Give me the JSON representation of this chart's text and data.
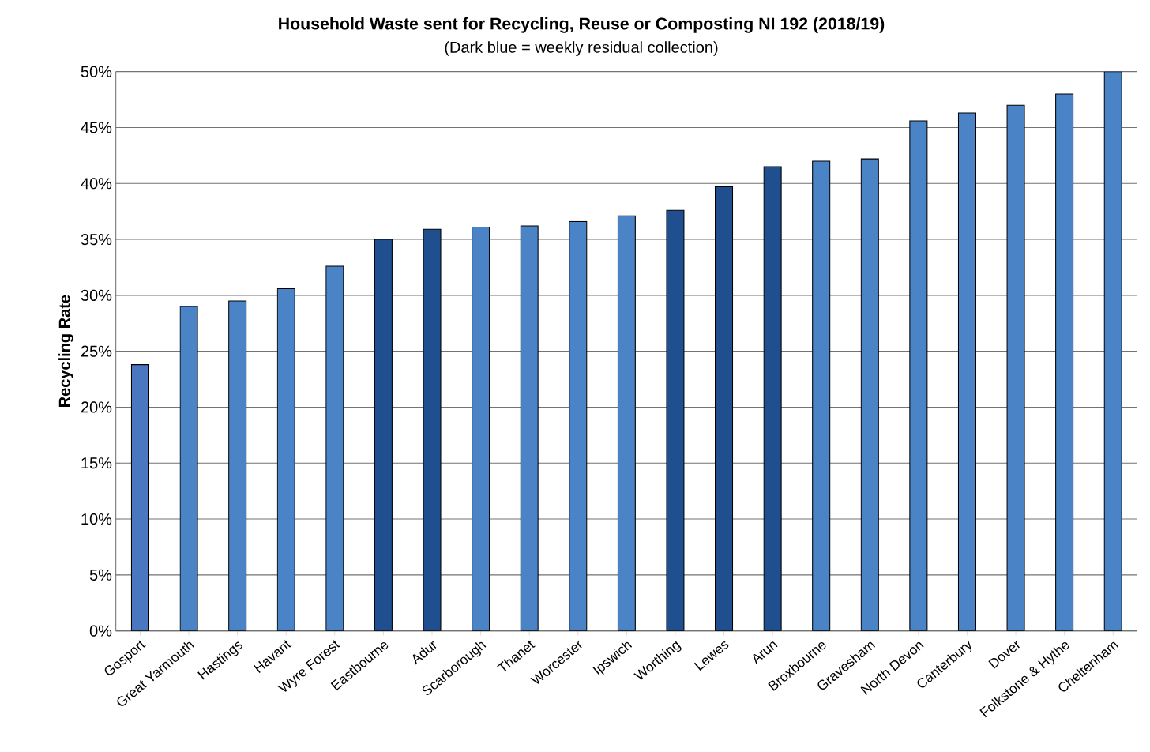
{
  "chart_data": {
    "type": "bar",
    "title": "Household Waste sent for Recycling, Reuse or Composting  NI 192 (2018/19)",
    "subtitle": "(Dark blue = weekly residual collection)",
    "ylabel": "Recycling Rate",
    "categories": [
      "Gosport",
      "Great Yarmouth",
      "Hastings",
      "Havant",
      "Wyre Forest",
      "Eastbourne",
      "Adur",
      "Scarborough",
      "Thanet",
      "Worcester",
      "Ipswich",
      "Worthing",
      "Lewes",
      "Arun",
      "Broxbourne",
      "Gravesham",
      "North Devon",
      "Canterbury",
      "Dover",
      "Folkstone & Hythe",
      "Cheltenham"
    ],
    "values": [
      23.8,
      29.0,
      29.5,
      30.6,
      32.6,
      35.0,
      35.9,
      36.1,
      36.2,
      36.6,
      37.1,
      37.6,
      39.7,
      41.5,
      42.0,
      42.2,
      45.6,
      46.3,
      47.0,
      48.0,
      50.0
    ],
    "colors": [
      "#4a78c0",
      "#4a83c6",
      "#4a83c6",
      "#4a83c6",
      "#4a83c6",
      "#1f4f8e",
      "#1f4f8e",
      "#4a83c6",
      "#4a83c6",
      "#4a83c6",
      "#4a83c6",
      "#1f4f8e",
      "#1f4f8e",
      "#1f4f8e",
      "#4a83c6",
      "#4a83c6",
      "#4a83c6",
      "#4a83c6",
      "#4a83c6",
      "#4a83c6",
      "#4a83c6"
    ],
    "ylim": [
      0,
      50
    ],
    "yticks": [
      {
        "value": 0,
        "label": "0%"
      },
      {
        "value": 5,
        "label": "5%"
      },
      {
        "value": 10,
        "label": "10%"
      },
      {
        "value": 15,
        "label": "15%"
      },
      {
        "value": 20,
        "label": "20%"
      },
      {
        "value": 25,
        "label": "25%"
      },
      {
        "value": 30,
        "label": "30%"
      },
      {
        "value": 35,
        "label": "35%"
      },
      {
        "value": 40,
        "label": "40%"
      },
      {
        "value": 45,
        "label": "45%"
      },
      {
        "value": 50,
        "label": "50%"
      }
    ],
    "grid": "y"
  }
}
